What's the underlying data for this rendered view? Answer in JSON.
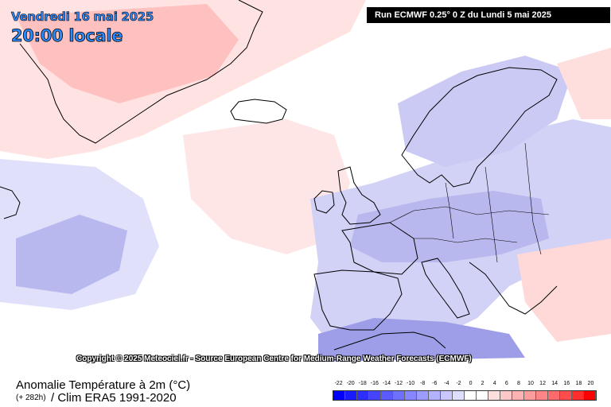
{
  "header": {
    "date": "Vendredi 16 mai 2025",
    "time": "20:00 locale",
    "run": "Run ECMWF 0.25° 0 Z du Lundi 5 mai 2025"
  },
  "copyright": "Copyright © 2025 Meteociel.fr - Source European Centre for Medium-Range Weather Forecasts (ECMWF)",
  "footer": {
    "title": "Anomalie Température à 2m (°C)",
    "lead": "(+ 282h)",
    "clim": "/ Clim ERA5 1991-2020"
  },
  "legend": {
    "ticks": [
      "-22",
      "-20",
      "-18",
      "-16",
      "-14",
      "-12",
      "-10",
      "-8",
      "-6",
      "-4",
      "-2",
      "0",
      "2",
      "4",
      "6",
      "8",
      "10",
      "12",
      "14",
      "16",
      "18",
      "20"
    ],
    "colors": [
      "#0000ff",
      "#1a1aff",
      "#2e2eff",
      "#4444ff",
      "#5a5aff",
      "#7070ff",
      "#8686ff",
      "#9c9cff",
      "#b2b2ff",
      "#c8c8ff",
      "#dedeff",
      "#ffffff",
      "#ffffff",
      "#ffdede",
      "#ffc8c8",
      "#ffb2b2",
      "#ff9c9c",
      "#ff8686",
      "#ff6a6a",
      "#ff4c4c",
      "#ff2e2e",
      "#ff0000"
    ]
  },
  "map": {
    "regions": [
      "greenland",
      "iceland",
      "british-isles",
      "iberia",
      "france",
      "scandinavia",
      "central-europe",
      "north-africa",
      "eastern-europe"
    ],
    "colors": {
      "ocean": "#ffffff",
      "warm": "#ffdada",
      "warm_strong": "#ffb0b0",
      "cool": "#dedeff",
      "cool_mid": "#c4c4f4",
      "cool_strong": "#a8a8ec",
      "coast": "#000000"
    }
  }
}
